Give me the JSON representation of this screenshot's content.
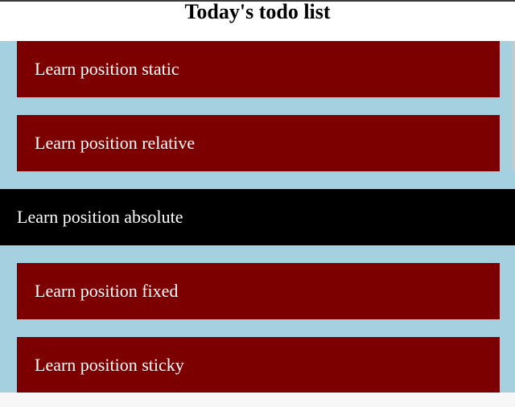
{
  "header": {
    "title": "Today's todo list"
  },
  "todos": [
    {
      "label": "Learn position static"
    },
    {
      "label": "Learn position relative"
    },
    {
      "label": "Learn position absolute"
    },
    {
      "label": "Learn position fixed"
    },
    {
      "label": "Learn position sticky"
    }
  ],
  "colors": {
    "list_background": "#a5d0e0",
    "item_background": "#7d0000",
    "highlight_item_background": "#000000",
    "text": "#ffffff"
  }
}
